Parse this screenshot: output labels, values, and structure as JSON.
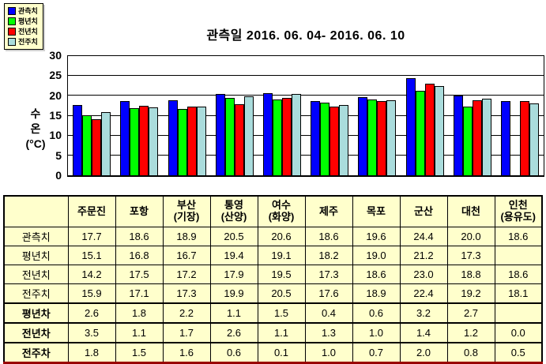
{
  "page": {
    "background": "#FFFFFF"
  },
  "legend": {
    "items": [
      {
        "label": "관측치",
        "color": "#0000FF"
      },
      {
        "label": "평년치",
        "color": "#00FF00"
      },
      {
        "label": "전년치",
        "color": "#FF0000"
      },
      {
        "label": "전주치",
        "color": "#AADCDC"
      }
    ]
  },
  "chart_data": {
    "type": "bar",
    "title": "관측일 2016. 06. 04- 2016. 06. 10",
    "ylabel": "수온(°C)",
    "ylabel_lines": [
      "수",
      "온",
      "(°C)"
    ],
    "xlabel": "",
    "ylim": [
      0,
      30
    ],
    "yticks": [
      0,
      5,
      10,
      15,
      20,
      25,
      30
    ],
    "grid": true,
    "legend_position": "top-left",
    "categories": [
      "주문진",
      "포항",
      "부산(기장)",
      "통영(산양)",
      "여수(화양)",
      "제주",
      "목포",
      "군산",
      "대천",
      "인천(용유도)"
    ],
    "series": [
      {
        "name": "관측치",
        "color": "#0000FF",
        "values": [
          17.7,
          18.6,
          18.9,
          20.5,
          20.6,
          18.6,
          19.6,
          24.4,
          20.0,
          18.6
        ]
      },
      {
        "name": "평년치",
        "color": "#00FF00",
        "values": [
          15.1,
          16.8,
          16.7,
          19.4,
          19.1,
          18.2,
          19.0,
          21.2,
          17.3,
          null
        ]
      },
      {
        "name": "전년치",
        "color": "#FF0000",
        "values": [
          14.2,
          17.5,
          17.2,
          17.9,
          19.5,
          17.3,
          18.6,
          23.0,
          18.8,
          18.6
        ]
      },
      {
        "name": "전주치",
        "color": "#AADCDC",
        "values": [
          15.9,
          17.1,
          17.3,
          19.9,
          20.5,
          17.6,
          18.9,
          22.4,
          19.2,
          18.1
        ]
      }
    ]
  },
  "table": {
    "colors": {
      "background": "#FFFFCC",
      "grid": "#000000",
      "bottom_border": "#990000"
    },
    "header_row": [
      "",
      "주문진",
      "포항",
      "부산\n(기장)",
      "통영\n(산양)",
      "여수\n(화양)",
      "제주",
      "목포",
      "군산",
      "대천",
      "인천\n(용유도)"
    ],
    "rows": [
      {
        "label": "관측치",
        "bold": false,
        "values": [
          "17.7",
          "18.6",
          "18.9",
          "20.5",
          "20.6",
          "18.6",
          "19.6",
          "24.4",
          "20.0",
          "18.6"
        ]
      },
      {
        "label": "평년치",
        "bold": false,
        "values": [
          "15.1",
          "16.8",
          "16.7",
          "19.4",
          "19.1",
          "18.2",
          "19.0",
          "21.2",
          "17.3",
          ""
        ]
      },
      {
        "label": "전년치",
        "bold": false,
        "values": [
          "14.2",
          "17.5",
          "17.2",
          "17.9",
          "19.5",
          "17.3",
          "18.6",
          "23.0",
          "18.8",
          "18.6"
        ]
      },
      {
        "label": "전주치",
        "bold": false,
        "values": [
          "15.9",
          "17.1",
          "17.3",
          "19.9",
          "20.5",
          "17.6",
          "18.9",
          "22.4",
          "19.2",
          "18.1"
        ]
      },
      {
        "label": "평년차",
        "bold": true,
        "values": [
          "2.6",
          "1.8",
          "2.2",
          "1.1",
          "1.5",
          "0.4",
          "0.6",
          "3.2",
          "2.7",
          ""
        ]
      },
      {
        "label": "전년차",
        "bold": true,
        "values": [
          "3.5",
          "1.1",
          "1.7",
          "2.6",
          "1.1",
          "1.3",
          "1.0",
          "1.4",
          "1.2",
          "0.0"
        ]
      },
      {
        "label": "전주차",
        "bold": true,
        "values": [
          "1.8",
          "1.5",
          "1.6",
          "0.6",
          "0.1",
          "1.0",
          "0.7",
          "2.0",
          "0.8",
          "0.5"
        ]
      }
    ]
  }
}
